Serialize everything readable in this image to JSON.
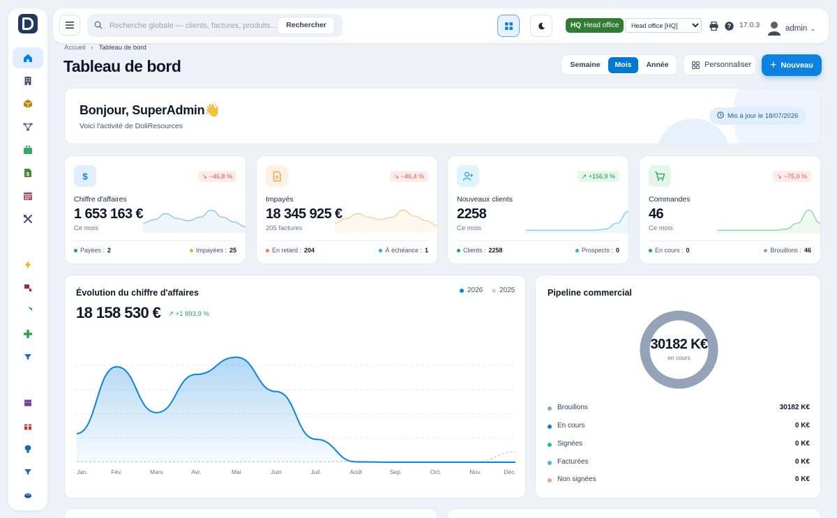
{
  "sidebar": {
    "logo_letter": "D",
    "items": [
      {
        "name": "home-icon",
        "color": "#0b82e0",
        "active": true
      },
      {
        "name": "building-icon",
        "color": "#475569"
      },
      {
        "name": "box-icon",
        "color": "#b8860b"
      },
      {
        "name": "flow-icon",
        "color": "#5b6b8c"
      },
      {
        "name": "briefcase-icon",
        "color": "#3aa86b"
      },
      {
        "name": "file-dollar-icon",
        "color": "#4c8a3a"
      },
      {
        "name": "calendar-icon",
        "color": "#b45365"
      },
      {
        "name": "tools-icon",
        "color": "#475569"
      },
      {
        "name": "eye-icon",
        "color": "#d4a017"
      },
      {
        "name": "bolt-icon",
        "color": "#e6b800"
      },
      {
        "name": "flag-icon",
        "color": "#a12b3a"
      },
      {
        "name": "shield-icon",
        "color": "#1f9d8a"
      },
      {
        "name": "plus-icon",
        "color": "#2e9e4f"
      },
      {
        "name": "filter-icon",
        "color": "#2463c4"
      },
      {
        "name": "layers-icon",
        "color": "#6b3fa0"
      },
      {
        "name": "gift-icon",
        "color": "#c0392b"
      },
      {
        "name": "pin-icon",
        "color": "#1f6aa5"
      },
      {
        "name": "funnel-icon",
        "color": "#2463c4"
      },
      {
        "name": "coins-icon",
        "color": "#2a4a8a"
      }
    ]
  },
  "topbar": {
    "search_placeholder": "Recherche globale — clients, factures, produits...",
    "search_button": "Rechercher",
    "hq_code": "HQ",
    "hq_label": "Head office",
    "entity_selected": "Head office [HQ]",
    "version": "17.0.3",
    "user": "admin"
  },
  "breadcrumb": {
    "home": "Accueil",
    "current": "Tableau de bord"
  },
  "page_title": "Tableau de bord",
  "period": {
    "options": [
      "Semaine",
      "Mois",
      "Année"
    ],
    "selected": "Mois"
  },
  "customize_label": "Personnaliser",
  "new_label": "Nouveau",
  "welcome": {
    "title": "Bonjour, SuperAdmin",
    "emoji": "👋",
    "subtitle": "Voici l'activité de DoliResources",
    "updated": "Mis à jour le 18/07/2026"
  },
  "kpis": [
    {
      "label": "Chiffre d'affaires",
      "value": "1 653 163 €",
      "sub": "Ce mois",
      "delta": "↘ −46,8 %",
      "delta_dir": "neg",
      "icon": "dollar-icon",
      "icon_bg": "#e1effc",
      "icon_color": "#0b82e0",
      "spark_color": "#8ec3ee",
      "spark": [
        0.35,
        0.5,
        0.75,
        0.55,
        0.45,
        0.6,
        0.9,
        0.6,
        0.4,
        0.2
      ],
      "foot_left_label": "Payées :",
      "foot_left_value": "2",
      "foot_left_color": "#22a35a",
      "foot_right_label": "Impayées :",
      "foot_right_value": "25",
      "foot_right_color": "#e6b04a"
    },
    {
      "label": "Impayés",
      "value": "18 345 925 €",
      "sub": "205 factures",
      "delta": "↘ −46,4 %",
      "delta_dir": "neg",
      "icon": "document-icon",
      "icon_bg": "#fdf1e2",
      "icon_color": "#e6a04a",
      "spark_color": "#f5cf98",
      "spark": [
        0.35,
        0.55,
        0.75,
        0.6,
        0.5,
        0.6,
        0.9,
        0.65,
        0.45,
        0.25
      ],
      "foot_left_label": "En retard :",
      "foot_left_value": "204",
      "foot_left_color": "#ef7d5b",
      "foot_right_label": "À échéance :",
      "foot_right_value": "1",
      "foot_right_color": "#22b3c8"
    },
    {
      "label": "Nouveaux clients",
      "value": "2258",
      "sub": "Ce mois",
      "delta": "↗ +156,9 %",
      "delta_dir": "pos",
      "icon": "user-plus-icon",
      "icon_bg": "#e0f4fb",
      "icon_color": "#2aa7d1",
      "spark_color": "#7fd2ea",
      "spark": [
        0.05,
        0.05,
        0.05,
        0.05,
        0.05,
        0.05,
        0.05,
        0.1,
        0.35,
        0.85
      ],
      "foot_left_label": "Clients :",
      "foot_left_value": "2258",
      "foot_left_color": "#22a35a",
      "foot_right_label": "Prospects :",
      "foot_right_value": "0",
      "foot_right_color": "#22b3c8"
    },
    {
      "label": "Commandes",
      "value": "46",
      "sub": "Ce mois",
      "delta": "↘ −75,0 %",
      "delta_dir": "neg",
      "icon": "cart-icon",
      "icon_bg": "#e4f6ea",
      "icon_color": "#22a35a",
      "spark_color": "#86d9a3",
      "spark": [
        0.05,
        0.05,
        0.05,
        0.05,
        0.05,
        0.05,
        0.1,
        0.35,
        0.9,
        0.35
      ],
      "foot_left_label": "En cours :",
      "foot_left_value": "0",
      "foot_left_color": "#22a35a",
      "foot_right_label": "Brouillons :",
      "foot_right_value": "46",
      "foot_right_color": "#94a3b8"
    }
  ],
  "revenue": {
    "title": "Évolution du chiffre d'affaires",
    "total": "18 158 530 €",
    "growth": "↗ +1 893,9 %",
    "legend": [
      {
        "label": "2026",
        "color": "#0b82e0"
      },
      {
        "label": "2025",
        "color": "#cbd5e1"
      }
    ]
  },
  "chart_data": {
    "type": "area",
    "title": "Évolution du chiffre d'affaires",
    "categories": [
      "Jan.",
      "Fév.",
      "Mars",
      "Avr.",
      "Mai",
      "Juin",
      "Juil.",
      "Août",
      "Sep.",
      "Oct.",
      "Nov.",
      "Déc."
    ],
    "series": [
      {
        "name": "2026",
        "values": [
          1.5,
          5.0,
          2.6,
          4.6,
          5.5,
          3.7,
          1.2,
          0.02,
          0,
          0,
          0,
          0
        ]
      },
      {
        "name": "2025",
        "values": [
          0.02,
          0.02,
          0.02,
          0.02,
          0.02,
          0.02,
          0.02,
          0.05,
          0,
          0.0,
          0.01,
          0.55
        ]
      }
    ],
    "ylim": [
      0,
      6.5
    ],
    "grid": true,
    "legend": "top-right"
  },
  "pipeline": {
    "title": "Pipeline commercial",
    "center_value": "30182 K€",
    "center_label": "en cours",
    "donut_color": "#94a3b8",
    "rows": [
      {
        "label": "Brouillons",
        "value": "30182 K€",
        "color": "#94a3b8"
      },
      {
        "label": "En cours",
        "value": "0 K€",
        "color": "#0b82e0"
      },
      {
        "label": "Signées",
        "value": "0 K€",
        "color": "#22c08a"
      },
      {
        "label": "Facturées",
        "value": "0 K€",
        "color": "#38bdf8"
      },
      {
        "label": "Non signées",
        "value": "0 K€",
        "color": "#f59e8b"
      }
    ]
  }
}
